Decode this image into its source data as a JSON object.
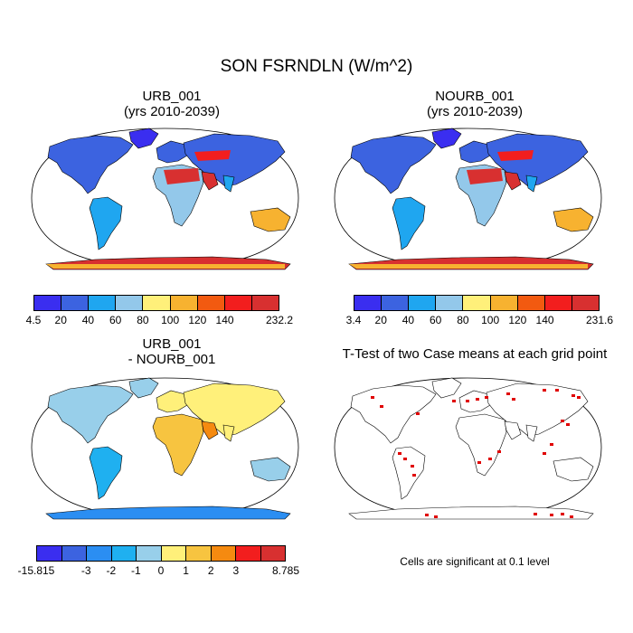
{
  "title": "SON FSRNDLN (W/m^2)",
  "panels": {
    "urb": {
      "title_line1": "URB_001",
      "title_line2": "(yrs 2010-2039)"
    },
    "nourb": {
      "title_line1": "NOURB_001",
      "title_line2": "(yrs 2010-2039)"
    },
    "diff": {
      "title_line1": "URB_001",
      "title_line2": "- NOURB_001"
    },
    "ttest": {
      "title_line1": "T-Test of two Case means at each grid point",
      "note": "Cells are significant at 0.1 level"
    }
  },
  "colorbars": {
    "urb": {
      "labels": [
        "4.5",
        "20",
        "40",
        "60",
        "80",
        "100",
        "120",
        "140",
        "232.2"
      ],
      "colors": [
        "#3a2ef0",
        "#3c63e0",
        "#1fa6f0",
        "#93c8ea",
        "#fff07a",
        "#f7b230",
        "#f25a10",
        "#f21e1e",
        "#d83030"
      ]
    },
    "nourb": {
      "labels": [
        "3.4",
        "20",
        "40",
        "60",
        "80",
        "100",
        "120",
        "140",
        "231.6"
      ],
      "colors": [
        "#3a2ef0",
        "#3c63e0",
        "#1fa6f0",
        "#93c8ea",
        "#fff07a",
        "#f7b230",
        "#f25a10",
        "#f21e1e",
        "#d83030"
      ]
    },
    "diff": {
      "labels": [
        "-15.815",
        "-3",
        "-2",
        "-1",
        "0",
        "1",
        "2",
        "3",
        "8.785"
      ],
      "colors": [
        "#3a2ef0",
        "#3c63e0",
        "#2b8ef2",
        "#1fb0f0",
        "#98cfea",
        "#fff07a",
        "#f7c440",
        "#f58a10",
        "#f21e1e",
        "#d83030"
      ]
    }
  },
  "chart_data": {
    "type": "map",
    "projection": "Robinson",
    "variable": "FSRNDLN",
    "season": "SON",
    "units": "W/m^2",
    "panels": [
      {
        "name": "URB_001",
        "period": "2010-2039",
        "min": 4.5,
        "max": 232.2,
        "levels": [
          20,
          40,
          60,
          80,
          100,
          120,
          140
        ]
      },
      {
        "name": "NOURB_001",
        "period": "2010-2039",
        "min": 3.4,
        "max": 231.6,
        "levels": [
          20,
          40,
          60,
          80,
          100,
          120,
          140
        ]
      },
      {
        "name": "URB_001 - NOURB_001",
        "min": -15.815,
        "max": 8.785,
        "levels": [
          -3,
          -2,
          -1,
          0,
          1,
          2,
          3
        ]
      },
      {
        "name": "T-Test",
        "significance": 0.1
      }
    ]
  }
}
